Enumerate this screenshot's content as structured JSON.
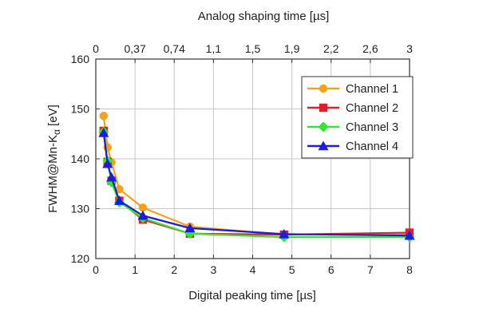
{
  "chart_data": {
    "type": "line",
    "title": "",
    "xlabel": "Digital peaking time [µs]",
    "ylabel_parts": [
      "FWHM@Mn-K",
      "α",
      " [eV]"
    ],
    "top_xlabel": "Analog shaping time  [µs]",
    "xlim": [
      0,
      8
    ],
    "ylim": [
      120,
      160
    ],
    "grid": true,
    "legend_position": "top-right",
    "x_ticks": [
      0,
      1,
      2,
      3,
      4,
      5,
      6,
      7,
      8
    ],
    "y_ticks": [
      120,
      130,
      140,
      150,
      160
    ],
    "top_x_ticks": [
      {
        "label": "0",
        "x": 0
      },
      {
        "label": "0,37",
        "x": 1.0
      },
      {
        "label": "0,74",
        "x": 2.0
      },
      {
        "label": "1,1",
        "x": 3.0
      },
      {
        "label": "1,5",
        "x": 4.0
      },
      {
        "label": "1,9",
        "x": 5.0
      },
      {
        "label": "2,2",
        "x": 6.0
      },
      {
        "label": "2,6",
        "x": 7.0
      },
      {
        "label": "3",
        "x": 8.0
      }
    ],
    "x": [
      0.2,
      0.3,
      0.4,
      0.6,
      1.2,
      2.4,
      4.8,
      8.0
    ],
    "series": [
      {
        "name": "Channel 1",
        "color": "#F5A21B",
        "marker": "circle",
        "values": [
          148.6,
          142.3,
          139.3,
          133.9,
          130.2,
          126.4,
          124.8,
          124.9
        ]
      },
      {
        "name": "Channel 2",
        "color": "#E41E26",
        "marker": "square",
        "values": [
          145.6,
          139.4,
          135.6,
          131.6,
          127.8,
          125.0,
          124.8,
          125.2
        ]
      },
      {
        "name": "Channel 3",
        "color": "#2EE82E",
        "marker": "diamond",
        "values": [
          145.4,
          139.6,
          135.3,
          131.3,
          128.1,
          125.0,
          124.3,
          124.3
        ]
      },
      {
        "name": "Channel 4",
        "color": "#1C1CE0",
        "marker": "triangle",
        "values": [
          145.2,
          139.0,
          136.3,
          131.6,
          128.6,
          126.1,
          124.9,
          124.6
        ]
      }
    ]
  }
}
